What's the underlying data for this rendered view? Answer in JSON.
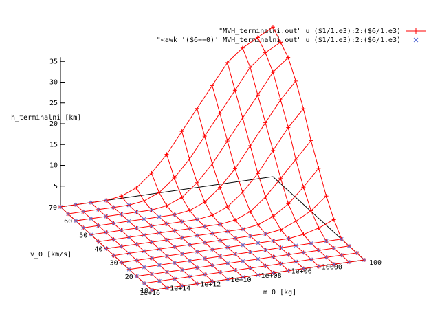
{
  "chart_data": {
    "type": "surface3d",
    "xlabel": "m_0 [kg]",
    "ylabel": "v_0 [km/s]",
    "zlabel": "h_terminalni [km]",
    "x_scale": "log",
    "x_range": [
      100,
      1e+16
    ],
    "y_range": [
      10,
      70
    ],
    "z_range": [
      0,
      35
    ],
    "x_ticks": [
      "1e+16",
      "1e+14",
      "1e+12",
      "1e+10",
      "1e+08",
      "1e+06",
      "10000",
      "100"
    ],
    "y_ticks": [
      "10",
      "20",
      "30",
      "40",
      "50",
      "60",
      "70"
    ],
    "z_ticks": [
      "5",
      "10",
      "15",
      "20",
      "25",
      "30",
      "35"
    ],
    "x_log_grid": [
      16,
      15,
      14,
      13,
      12,
      11,
      10,
      9,
      8,
      7,
      6,
      5,
      4,
      3,
      2
    ],
    "y_grid": [
      10,
      15,
      20,
      25,
      30,
      35,
      40,
      45,
      50,
      55,
      60,
      65,
      70
    ],
    "h_values": [
      [
        0,
        0,
        0,
        0,
        0,
        0,
        0,
        0,
        0,
        0,
        0,
        0,
        0,
        0,
        0
      ],
      [
        0,
        0,
        0,
        0,
        0,
        0,
        0,
        0,
        0,
        0,
        0,
        0,
        0,
        0,
        0
      ],
      [
        0,
        0,
        0,
        0,
        0,
        0,
        0,
        0,
        0,
        0,
        0,
        0,
        0,
        0,
        0
      ],
      [
        0,
        0,
        0,
        0,
        0,
        0,
        0,
        0,
        0,
        0,
        0,
        0,
        0,
        0,
        0
      ],
      [
        0,
        0,
        0,
        0,
        0,
        0,
        0,
        0,
        0,
        0,
        0,
        0,
        0.5,
        1.5,
        3
      ],
      [
        0,
        0,
        0,
        0,
        0,
        0,
        0,
        0,
        0,
        0,
        0,
        0.5,
        2,
        4,
        7
      ],
      [
        0,
        0,
        0,
        0,
        0,
        0,
        0,
        0,
        0,
        0,
        0.5,
        2,
        4.5,
        8,
        12
      ],
      [
        0,
        0,
        0,
        0,
        0,
        0,
        0,
        0,
        0,
        0.5,
        2,
        5,
        9,
        13,
        17
      ],
      [
        0,
        0,
        0,
        0,
        0,
        0,
        0,
        0,
        0.5,
        2,
        5,
        9,
        14,
        19,
        23
      ],
      [
        0,
        0,
        0,
        0,
        0,
        0,
        0,
        0.5,
        2,
        5,
        9,
        14,
        19,
        24,
        28
      ],
      [
        0,
        0,
        0,
        0,
        0,
        0,
        0.5,
        2,
        5,
        9,
        14,
        19,
        24,
        29,
        32
      ],
      [
        0,
        0,
        0,
        0,
        0,
        0.5,
        2,
        5,
        9,
        14,
        19,
        24,
        29,
        32,
        34
      ],
      [
        0,
        0,
        0,
        0,
        0.5,
        2,
        5,
        9,
        14,
        19,
        24,
        29,
        32,
        34,
        36
      ]
    ],
    "series": [
      {
        "name": "\"MVH_terminalni.out\" u ($1/1.e3):2:($6/1.e3)",
        "color": "#ff0000",
        "marker": "plus"
      },
      {
        "name": "\"<awk '($6==0)' MVH_terminalni.out\" u ($1/1.e3):2:($6/1.e3)",
        "color": "#5b6fd6",
        "marker": "cross"
      }
    ],
    "legend_position": "top-right"
  }
}
